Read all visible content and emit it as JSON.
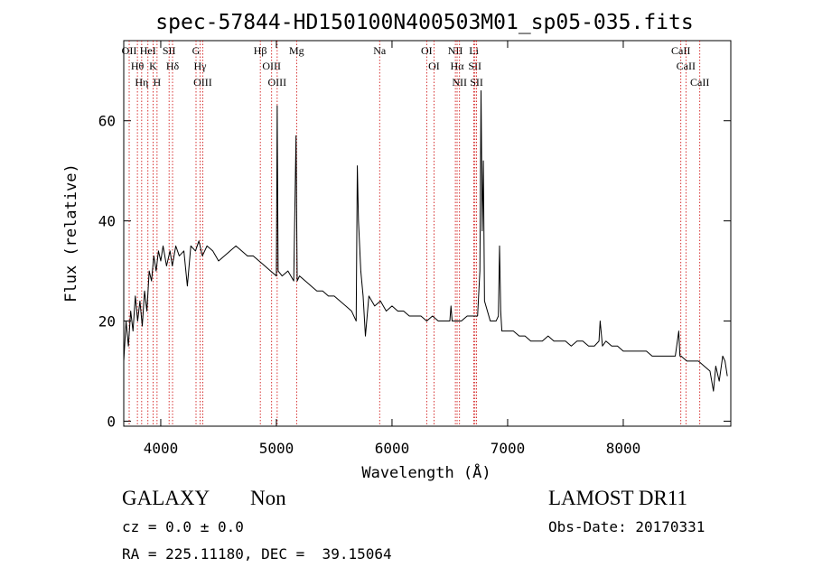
{
  "chart_data": {
    "type": "line",
    "title": "spec-57844-HD150100N400503M01_sp05-035.fits",
    "x_label": "Wavelength (Å)",
    "y_label": "Flux (relative)",
    "color": "#000000",
    "line_color": "#cc0000",
    "xlim": [
      3680,
      8930
    ],
    "ylim": [
      -1,
      76
    ],
    "xticks": [
      4000,
      5000,
      6000,
      7000,
      8000
    ],
    "yticks": [
      0,
      20,
      40,
      60
    ],
    "x": [
      3680,
      3700,
      3720,
      3740,
      3760,
      3780,
      3800,
      3820,
      3840,
      3860,
      3880,
      3900,
      3920,
      3940,
      3960,
      3980,
      4000,
      4020,
      4050,
      4080,
      4100,
      4130,
      4160,
      4200,
      4230,
      4260,
      4300,
      4330,
      4360,
      4400,
      4450,
      4500,
      4550,
      4600,
      4650,
      4700,
      4750,
      4800,
      4850,
      4900,
      4950,
      5000,
      5007,
      5015,
      5050,
      5100,
      5150,
      5170,
      5180,
      5200,
      5250,
      5300,
      5350,
      5400,
      5450,
      5500,
      5550,
      5600,
      5650,
      5690,
      5700,
      5710,
      5730,
      5750,
      5770,
      5800,
      5850,
      5900,
      5950,
      6000,
      6050,
      6100,
      6150,
      6200,
      6250,
      6300,
      6350,
      6400,
      6450,
      6500,
      6510,
      6520,
      6550,
      6600,
      6650,
      6700,
      6740,
      6760,
      6770,
      6780,
      6790,
      6800,
      6850,
      6900,
      6920,
      6930,
      6940,
      6950,
      7000,
      7050,
      7100,
      7150,
      7200,
      7250,
      7300,
      7350,
      7400,
      7450,
      7500,
      7550,
      7600,
      7650,
      7700,
      7750,
      7790,
      7800,
      7820,
      7850,
      7900,
      7950,
      8000,
      8050,
      8100,
      8150,
      8200,
      8250,
      8300,
      8350,
      8400,
      8450,
      8480,
      8490,
      8500,
      8550,
      8600,
      8650,
      8700,
      8750,
      8780,
      8800,
      8830,
      8860,
      8880,
      8900
    ],
    "values": [
      12,
      20,
      15,
      22,
      18,
      25,
      20,
      24,
      19,
      26,
      22,
      30,
      28,
      33,
      30,
      34,
      32,
      35,
      31,
      34,
      31,
      35,
      33,
      34,
      27,
      35,
      34,
      36,
      33,
      35,
      34,
      32,
      33,
      34,
      35,
      34,
      33,
      33,
      32,
      31,
      30,
      29,
      63,
      30,
      29,
      30,
      28,
      57,
      28,
      29,
      28,
      27,
      26,
      26,
      25,
      25,
      24,
      23,
      22,
      20,
      51,
      40,
      30,
      25,
      17,
      25,
      23,
      24,
      22,
      23,
      22,
      22,
      21,
      21,
      21,
      20,
      21,
      20,
      20,
      20,
      23,
      20,
      20,
      20,
      21,
      21,
      21,
      30,
      66,
      38,
      52,
      24,
      20,
      20,
      21,
      35,
      22,
      18,
      18,
      18,
      17,
      17,
      16,
      16,
      16,
      17,
      16,
      16,
      16,
      15,
      16,
      16,
      15,
      15,
      16,
      20,
      15,
      16,
      15,
      15,
      14,
      14,
      14,
      14,
      14,
      13,
      13,
      13,
      13,
      13,
      18,
      13,
      13,
      12,
      12,
      12,
      11,
      10,
      6,
      11,
      8,
      13,
      12,
      9
    ],
    "line_labels": [
      {
        "label": "OII",
        "wavelength": 3727
      },
      {
        "label": "Hθ",
        "wavelength": 3798
      },
      {
        "label": "Hη",
        "wavelength": 3835
      },
      {
        "label": "HeI",
        "wavelength": 3889
      },
      {
        "label": "K",
        "wavelength": 3934
      },
      {
        "label": "H",
        "wavelength": 3968
      },
      {
        "label": "SII",
        "wavelength": 4072
      },
      {
        "label": "Hδ",
        "wavelength": 4102
      },
      {
        "label": "G",
        "wavelength": 4305
      },
      {
        "label": "Hγ",
        "wavelength": 4340
      },
      {
        "label": "OIII",
        "wavelength": 4363
      },
      {
        "label": "Hβ",
        "wavelength": 4861
      },
      {
        "label": "OIII",
        "wavelength": 4959
      },
      {
        "label": "OIII",
        "wavelength": 5007
      },
      {
        "label": "Mg",
        "wavelength": 5175
      },
      {
        "label": "Na",
        "wavelength": 5893
      },
      {
        "label": "OI",
        "wavelength": 6300
      },
      {
        "label": "OI",
        "wavelength": 6363
      },
      {
        "label": "NII",
        "wavelength": 6548
      },
      {
        "label": "Hα",
        "wavelength": 6563
      },
      {
        "label": "NII",
        "wavelength": 6584
      },
      {
        "label": "Li",
        "wavelength": 6708
      },
      {
        "label": "SII",
        "wavelength": 6717
      },
      {
        "label": "SII",
        "wavelength": 6731
      },
      {
        "label": "CaII",
        "wavelength": 8498
      },
      {
        "label": "CaII",
        "wavelength": 8542
      },
      {
        "label": "CaII",
        "wavelength": 8662
      }
    ]
  },
  "footer": {
    "class": "GALAXY",
    "subclass": "Non",
    "cz": "cz = 0.0 ± 0.0",
    "coords": "RA = 225.11180, DEC =  39.15064",
    "survey": "LAMOST DR11",
    "obs_date": "Obs-Date: 20170331"
  }
}
